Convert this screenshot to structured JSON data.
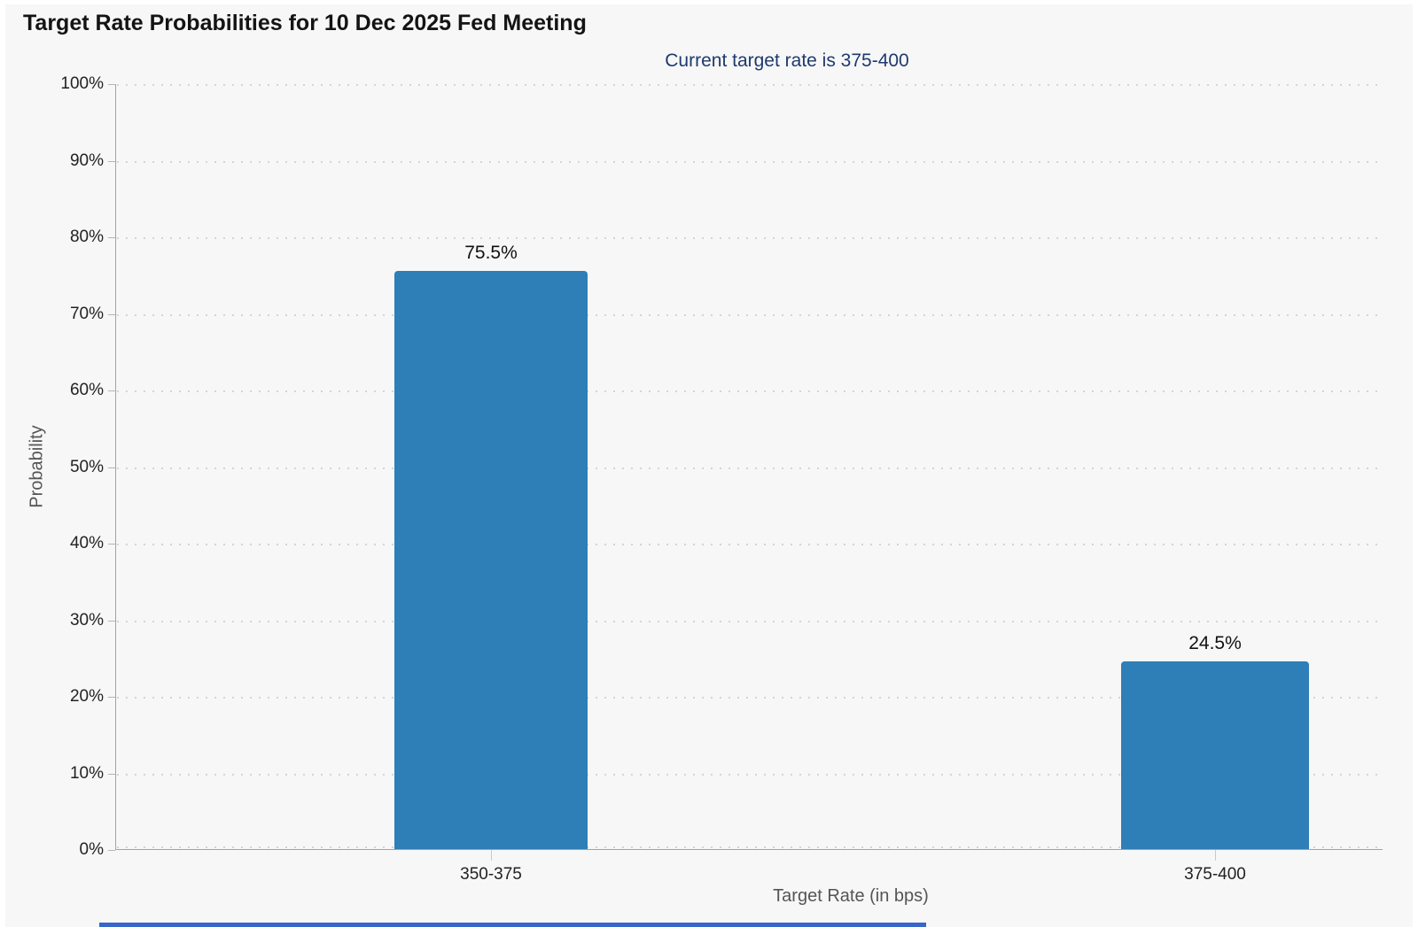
{
  "header": {
    "title": "Target Rate Probabilities for 10 Dec 2025 Fed Meeting",
    "subtitle": "Current target rate is 375-400"
  },
  "chart_data": {
    "type": "bar",
    "title": "Target Rate Probabilities for 10 Dec 2025 Fed Meeting",
    "subtitle": "Current target rate is 375-400",
    "categories": [
      "350-375",
      "375-400"
    ],
    "values": [
      75.5,
      24.5
    ],
    "data_labels": [
      "75.5%",
      "24.5%"
    ],
    "xlabel": "Target Rate (in bps)",
    "ylabel": "Probability",
    "ylim": [
      0,
      100
    ],
    "ytick_step": 10,
    "ytick_labels": [
      "0%",
      "10%",
      "20%",
      "30%",
      "40%",
      "50%",
      "60%",
      "70%",
      "80%",
      "90%",
      "100%"
    ],
    "grid": "dotted horizontal gridlines",
    "legend": "none",
    "colors": {
      "bar": "#2e7eb7",
      "background": "#f7f7f7",
      "subtitle_text": "#1e3a6e",
      "bottom_accent": "#3667c9"
    }
  }
}
